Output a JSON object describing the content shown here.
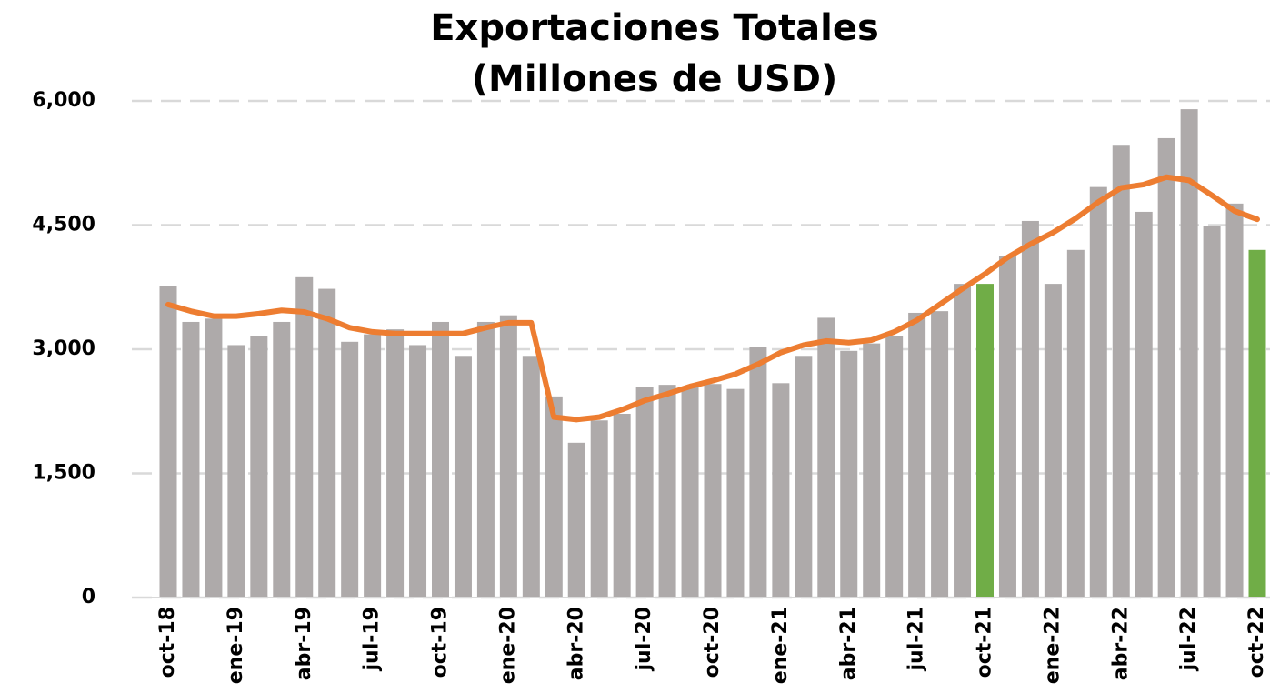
{
  "chart_data": {
    "type": "bar",
    "title": [
      "Exportaciones  Totales",
      "(Millones de USD)"
    ],
    "categories": [
      "oct-18",
      null,
      null,
      "ene-19",
      null,
      null,
      "abr-19",
      null,
      null,
      "jul-19",
      null,
      null,
      "oct-19",
      null,
      null,
      "ene-20",
      null,
      null,
      "abr-20",
      null,
      null,
      "jul-20",
      null,
      null,
      "oct-20",
      null,
      null,
      "ene-21",
      null,
      null,
      "abr-21",
      null,
      null,
      "jul-21",
      null,
      null,
      "oct-21",
      null,
      null,
      "ene-22",
      null,
      null,
      "abr-22",
      null,
      null,
      "jul-22",
      null,
      null,
      "oct-22"
    ],
    "series": [
      {
        "type": "bar",
        "color": "#aeaaaa",
        "highlight_color": "#70ad47",
        "highlight": [
          36,
          48
        ],
        "values": [
          3760,
          3330,
          3370,
          3050,
          3160,
          3330,
          3870,
          3730,
          3090,
          3180,
          3240,
          3050,
          3330,
          2920,
          3330,
          3410,
          2920,
          2430,
          1870,
          2140,
          2220,
          2540,
          2570,
          2540,
          2580,
          2520,
          3030,
          2590,
          2920,
          3380,
          2980,
          3070,
          3160,
          3440,
          3460,
          3790,
          3790,
          4130,
          4550,
          3790,
          4200,
          4960,
          5470,
          4660,
          5550,
          5900,
          4490,
          4760,
          4200
        ]
      },
      {
        "type": "line",
        "color": "#ed7d31",
        "values": [
          3540,
          3460,
          3400,
          3400,
          3430,
          3470,
          3450,
          3370,
          3260,
          3210,
          3190,
          3190,
          3190,
          3190,
          3260,
          3320,
          3320,
          2180,
          2150,
          2180,
          2270,
          2380,
          2460,
          2550,
          2620,
          2700,
          2820,
          2960,
          3050,
          3100,
          3080,
          3110,
          3210,
          3350,
          3540,
          3730,
          3910,
          4110,
          4270,
          4410,
          4580,
          4780,
          4950,
          4990,
          5080,
          5040,
          4860,
          4670,
          4570
        ]
      }
    ],
    "ylim": [
      0,
      6000
    ],
    "yticks": [
      0,
      {
        "value": 1500,
        "label": "1,500"
      },
      {
        "value": 3000,
        "label": "3,000"
      },
      {
        "value": 4500,
        "label": "4,500"
      },
      {
        "value": 6000,
        "label": "6,000"
      }
    ],
    "grid": true
  }
}
